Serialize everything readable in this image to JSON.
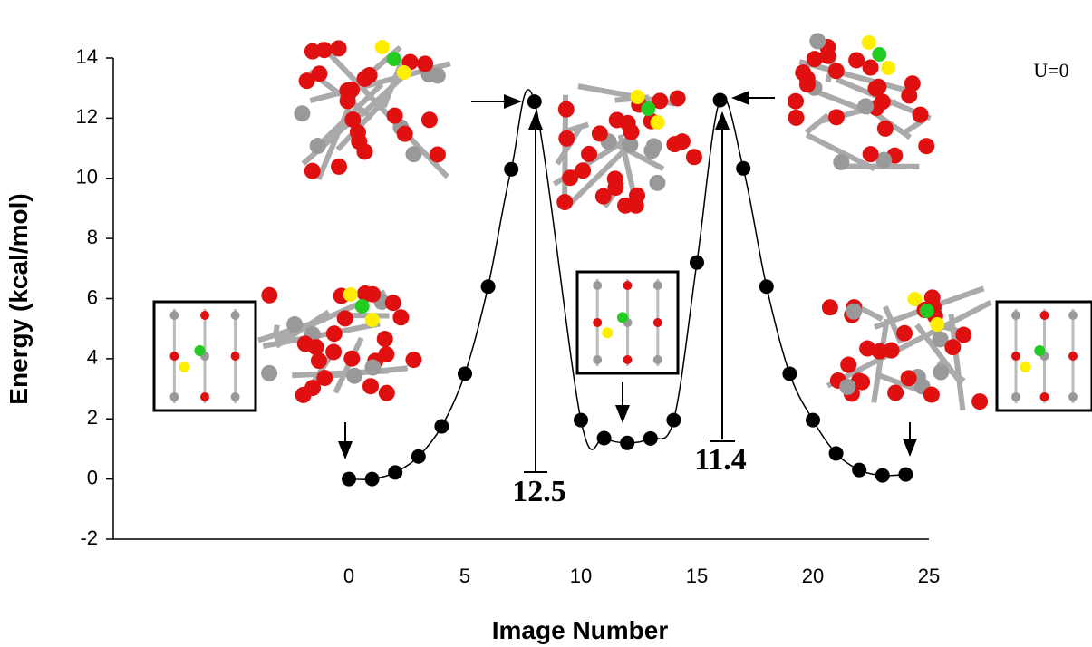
{
  "chart_data": {
    "type": "line",
    "x": [
      0,
      1,
      2,
      3,
      4,
      5,
      6,
      7,
      8,
      10,
      11,
      12,
      13,
      14,
      15,
      16,
      17,
      18,
      19,
      20,
      21,
      22,
      23,
      24
    ],
    "series": [
      {
        "color": "#000000",
        "values": [
          0.0,
          0.0,
          0.22,
          0.75,
          1.75,
          3.5,
          6.4,
          10.3,
          12.55,
          1.96,
          1.36,
          1.2,
          1.35,
          1.96,
          7.2,
          12.6,
          10.33,
          6.4,
          3.5,
          1.96,
          0.85,
          0.3,
          0.12,
          0.15
        ]
      }
    ],
    "xlim": [
      -10,
      25
    ],
    "xticks": [
      0,
      5,
      10,
      15,
      20,
      25
    ],
    "ylim": [
      -2,
      14
    ],
    "yticks": [
      -2,
      0,
      2,
      4,
      6,
      8,
      10,
      12,
      14
    ],
    "xlabel": "Image Number",
    "ylabel": "Energy (kcal/mol)",
    "annotations": [
      "12.5",
      "11.4",
      "U=0"
    ]
  }
}
